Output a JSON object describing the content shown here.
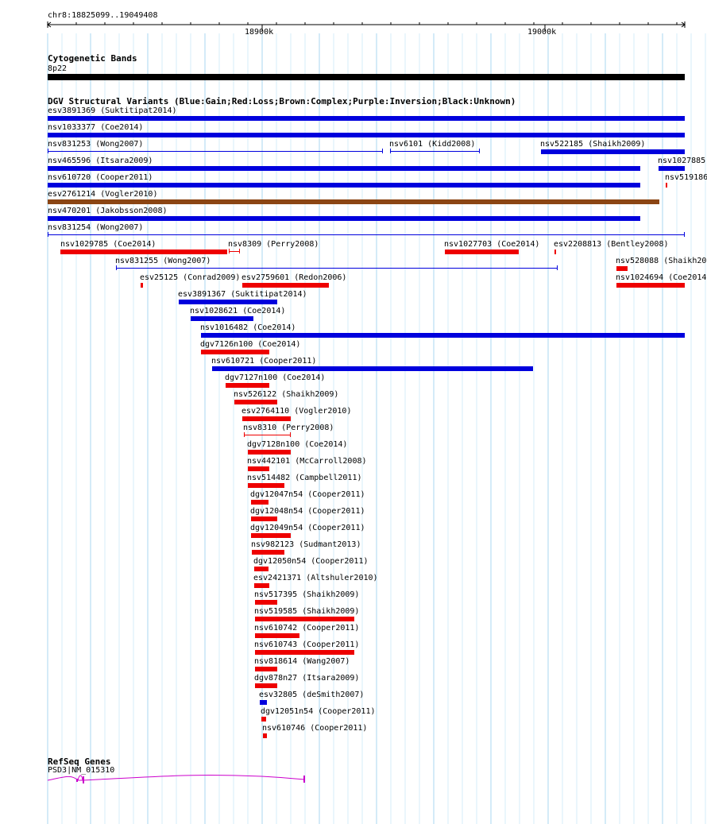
{
  "ruler": {
    "location": "chr8:18825099..19049408",
    "tick_labels": [
      "18900k",
      "19000k"
    ]
  },
  "cytoband_track": {
    "title": "Cytogenetic Bands",
    "band_label": "8p22"
  },
  "dgv_track": {
    "title": "DGV Structural Variants (Blue:Gain;Red:Loss;Brown:Complex;Purple:Inversion;Black:Unknown)",
    "colors": {
      "gain": "#0000dd",
      "loss": "#ee0000",
      "complex": "#8b4513"
    },
    "features": [
      {
        "label": "esv3891369 (Suktitipat2014)",
        "type": "gain"
      },
      {
        "label": "nsv1033377 (Coe2014)",
        "type": "gain"
      },
      {
        "label": "nsv831253 (Wong2007)",
        "type": "gain"
      },
      {
        "label": "nsv6101 (Kidd2008)",
        "type": "gain"
      },
      {
        "label": "nsv522185 (Shaikh2009)",
        "type": "gain"
      },
      {
        "label": "nsv465596 (Itsara2009)",
        "type": "gain"
      },
      {
        "label": "nsv1027885",
        "type": "gain"
      },
      {
        "label": "nsv610720 (Cooper2011)",
        "type": "gain"
      },
      {
        "label": "nsv519186",
        "type": "loss"
      },
      {
        "label": "esv2761214 (Vogler2010)",
        "type": "complex"
      },
      {
        "label": "nsv470201 (Jakobsson2008)",
        "type": "gain"
      },
      {
        "label": "nsv831254 (Wong2007)",
        "type": "gain"
      },
      {
        "label": "nsv1029785 (Coe2014)",
        "type": "loss"
      },
      {
        "label": "nsv8309 (Perry2008)",
        "type": "loss"
      },
      {
        "label": "nsv1027703 (Coe2014)",
        "type": "loss"
      },
      {
        "label": "esv2208813 (Bentley2008)",
        "type": "loss"
      },
      {
        "label": "nsv831255 (Wong2007)",
        "type": "gain"
      },
      {
        "label": "nsv528088 (Shaikh20",
        "type": "loss"
      },
      {
        "label": "esv25125 (Conrad2009)",
        "type": "loss"
      },
      {
        "label": "esv2759601 (Redon2006)",
        "type": "loss"
      },
      {
        "label": "nsv1024694 (Coe2014",
        "type": "loss"
      },
      {
        "label": "esv3891367 (Suktitipat2014)",
        "type": "gain"
      },
      {
        "label": "nsv1028621 (Coe2014)",
        "type": "gain"
      },
      {
        "label": "nsv1016482 (Coe2014)",
        "type": "gain"
      },
      {
        "label": "dgv7126n100 (Coe2014)",
        "type": "loss"
      },
      {
        "label": "nsv610721 (Cooper2011)",
        "type": "gain"
      },
      {
        "label": "dgv7127n100 (Coe2014)",
        "type": "loss"
      },
      {
        "label": "nsv526122 (Shaikh2009)",
        "type": "loss"
      },
      {
        "label": "esv2764110 (Vogler2010)",
        "type": "loss"
      },
      {
        "label": "nsv8310 (Perry2008)",
        "type": "loss"
      },
      {
        "label": "dgv7128n100 (Coe2014)",
        "type": "loss"
      },
      {
        "label": "nsv442101 (McCarroll2008)",
        "type": "loss"
      },
      {
        "label": "nsv514482 (Campbell2011)",
        "type": "loss"
      },
      {
        "label": "dgv12047n54 (Cooper2011)",
        "type": "loss"
      },
      {
        "label": "dgv12048n54 (Cooper2011)",
        "type": "loss"
      },
      {
        "label": "dgv12049n54 (Cooper2011)",
        "type": "loss"
      },
      {
        "label": "nsv982123 (Sudmant2013)",
        "type": "loss"
      },
      {
        "label": "dgv12050n54 (Cooper2011)",
        "type": "loss"
      },
      {
        "label": "esv2421371 (Altshuler2010)",
        "type": "loss"
      },
      {
        "label": "nsv517395 (Shaikh2009)",
        "type": "loss"
      },
      {
        "label": "nsv519585 (Shaikh2009)",
        "type": "loss"
      },
      {
        "label": "nsv610742 (Cooper2011)",
        "type": "loss"
      },
      {
        "label": "nsv610743 (Cooper2011)",
        "type": "loss"
      },
      {
        "label": "nsv818614 (Wang2007)",
        "type": "loss"
      },
      {
        "label": "dgv878n27 (Itsara2009)",
        "type": "loss"
      },
      {
        "label": "esv32805 (deSmith2007)",
        "type": "gain"
      },
      {
        "label": "dgv12051n54 (Cooper2011)",
        "type": "loss"
      },
      {
        "label": "nsv610746 (Cooper2011)",
        "type": "loss"
      }
    ]
  },
  "refseq_track": {
    "title": "RefSeq Genes",
    "gene_label": "PSD3|NM_015310",
    "color": "#cc00cc"
  }
}
